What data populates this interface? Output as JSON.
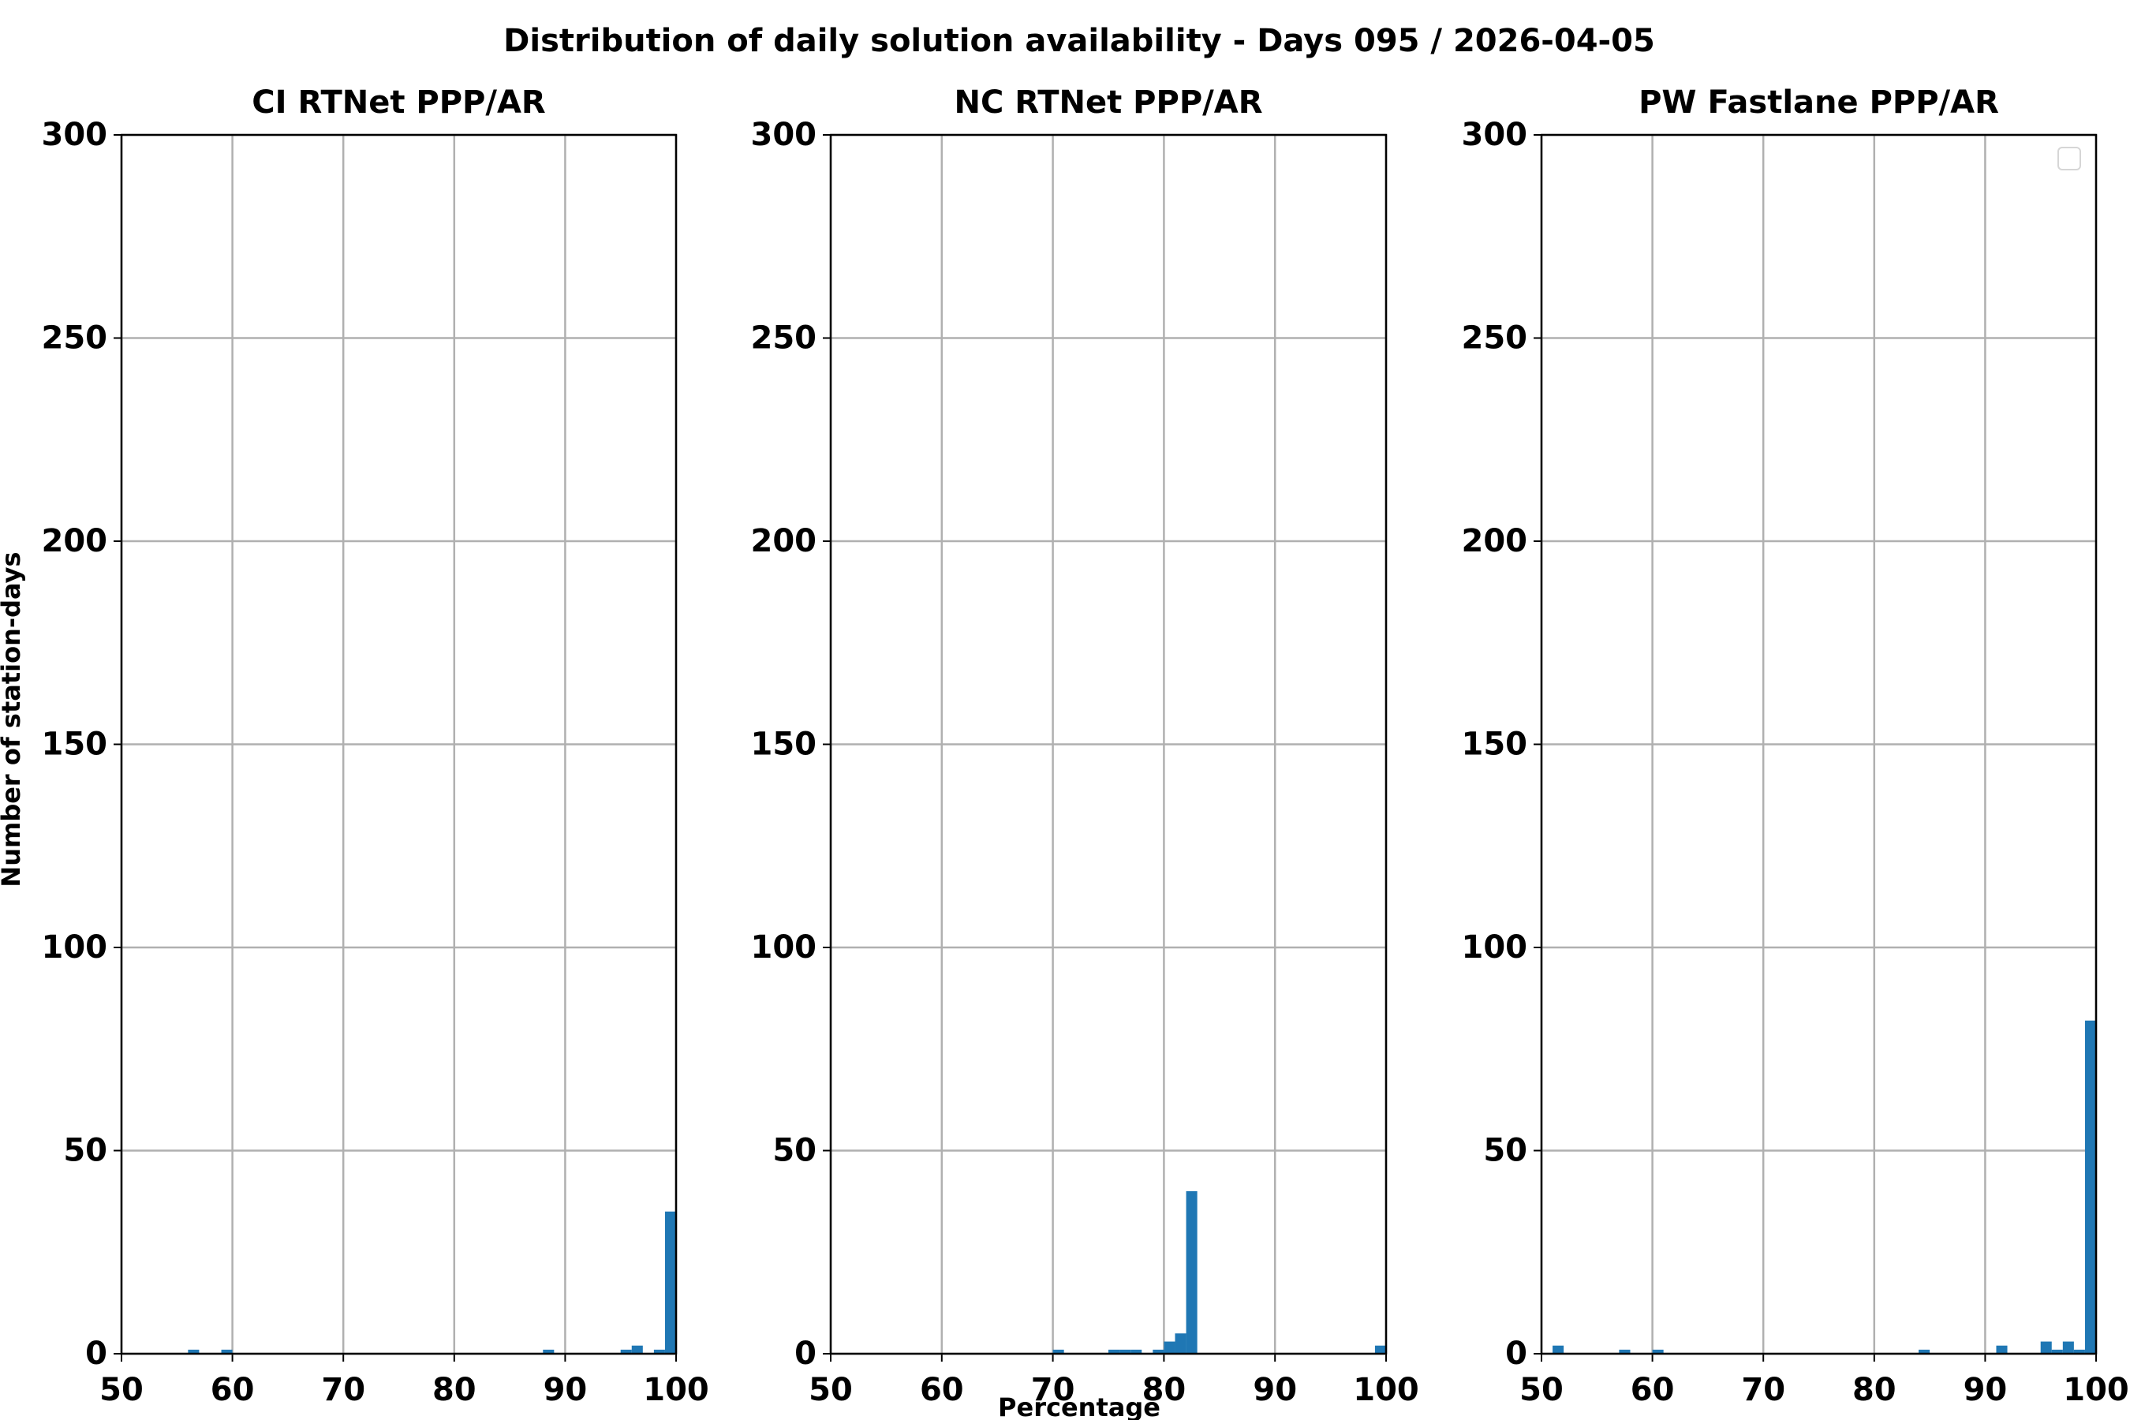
{
  "title": "Distribution of daily solution availability - Days 095  / 2026-04-05",
  "y_label": "Number of station-days",
  "x_label": "Percentage",
  "chart_data": [
    {
      "type": "histogram",
      "title": "CI RTNet PPP/AR",
      "color": "#1f77b4",
      "bins": [
        50,
        51,
        52,
        53,
        54,
        55,
        56,
        57,
        58,
        59,
        60,
        61,
        62,
        63,
        64,
        65,
        66,
        67,
        68,
        69,
        70,
        71,
        72,
        73,
        74,
        75,
        76,
        77,
        78,
        79,
        80,
        81,
        82,
        83,
        84,
        85,
        86,
        87,
        88,
        89,
        90,
        91,
        92,
        93,
        94,
        95,
        96,
        97,
        98,
        99,
        100
      ],
      "values": [
        0,
        0,
        0,
        0,
        0,
        0,
        1,
        0,
        0,
        1,
        0,
        0,
        0,
        0,
        0,
        0,
        0,
        0,
        0,
        0,
        0,
        0,
        0,
        0,
        0,
        0,
        0,
        0,
        0,
        0,
        0,
        0,
        0,
        0,
        0,
        0,
        0,
        0,
        1,
        0,
        0,
        0,
        0,
        0,
        0,
        1,
        2,
        0,
        1,
        35
      ],
      "xlim": [
        50,
        100
      ],
      "ylim": [
        0,
        300
      ],
      "xticks": [
        50,
        60,
        70,
        80,
        90,
        100
      ],
      "yticks": [
        0,
        50,
        100,
        150,
        200,
        250,
        300
      ],
      "grid": true
    },
    {
      "type": "histogram",
      "title": "NC RTNet PPP/AR",
      "color": "#1f77b4",
      "bins": [
        50,
        51,
        52,
        53,
        54,
        55,
        56,
        57,
        58,
        59,
        60,
        61,
        62,
        63,
        64,
        65,
        66,
        67,
        68,
        69,
        70,
        71,
        72,
        73,
        74,
        75,
        76,
        77,
        78,
        79,
        80,
        81,
        82,
        83,
        84,
        85,
        86,
        87,
        88,
        89,
        90,
        91,
        92,
        93,
        94,
        95,
        96,
        97,
        98,
        99,
        100
      ],
      "values": [
        0,
        0,
        0,
        0,
        0,
        0,
        0,
        0,
        0,
        0,
        0,
        0,
        0,
        0,
        0,
        0,
        0,
        0,
        0,
        0,
        1,
        0,
        0,
        0,
        0,
        1,
        1,
        1,
        0,
        1,
        3,
        5,
        40,
        0,
        0,
        0,
        0,
        0,
        0,
        0,
        0,
        0,
        0,
        0,
        0,
        0,
        0,
        0,
        0,
        2
      ],
      "xlim": [
        50,
        100
      ],
      "ylim": [
        0,
        300
      ],
      "xticks": [
        50,
        60,
        70,
        80,
        90,
        100
      ],
      "yticks": [
        0,
        50,
        100,
        150,
        200,
        250,
        300
      ],
      "grid": true
    },
    {
      "type": "histogram",
      "title": "PW Fastlane PPP/AR",
      "color": "#1f77b4",
      "bins": [
        50,
        51,
        52,
        53,
        54,
        55,
        56,
        57,
        58,
        59,
        60,
        61,
        62,
        63,
        64,
        65,
        66,
        67,
        68,
        69,
        70,
        71,
        72,
        73,
        74,
        75,
        76,
        77,
        78,
        79,
        80,
        81,
        82,
        83,
        84,
        85,
        86,
        87,
        88,
        89,
        90,
        91,
        92,
        93,
        94,
        95,
        96,
        97,
        98,
        99,
        100
      ],
      "values": [
        0,
        2,
        0,
        0,
        0,
        0,
        0,
        1,
        0,
        0,
        1,
        0,
        0,
        0,
        0,
        0,
        0,
        0,
        0,
        0,
        0,
        0,
        0,
        0,
        0,
        0,
        0,
        0,
        0,
        0,
        0,
        0,
        0,
        0,
        1,
        0,
        0,
        0,
        0,
        0,
        0,
        2,
        0,
        0,
        0,
        3,
        1,
        3,
        1,
        82
      ],
      "xlim": [
        50,
        100
      ],
      "ylim": [
        0,
        300
      ],
      "xticks": [
        50,
        60,
        70,
        80,
        90,
        100
      ],
      "yticks": [
        0,
        50,
        100,
        150,
        200,
        250,
        300
      ],
      "grid": true,
      "legend": "upper right"
    }
  ]
}
